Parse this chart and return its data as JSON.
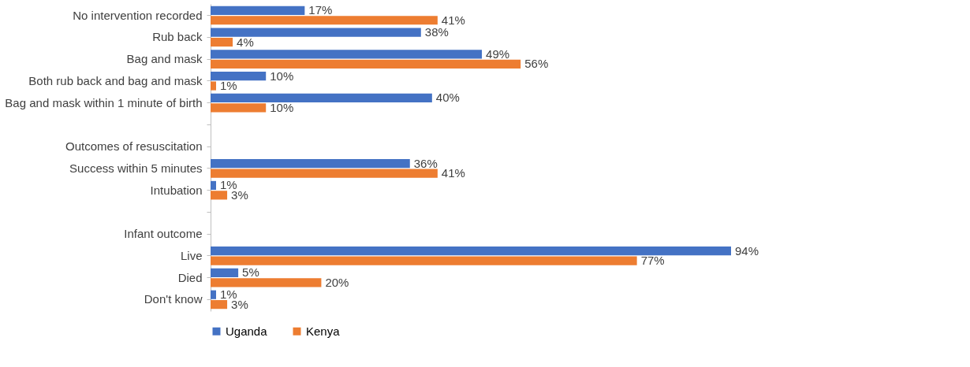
{
  "chart_data": {
    "type": "bar",
    "orientation": "horizontal",
    "legend": "bottom left",
    "grid": false,
    "categories": [
      "No intervention recorded",
      "Rub back",
      "Bag and mask",
      "Both rub back and bag and mask",
      "Bag and mask within 1 minute of birth",
      null,
      "Outcomes of resuscitation",
      "Success within 5 minutes",
      "Intubation",
      null,
      "Infant outcome",
      "Live",
      "Died",
      "Don't know"
    ],
    "series": [
      {
        "name": "Uganda",
        "color": "#4472c4",
        "values": [
          17,
          38,
          49,
          10,
          40,
          null,
          null,
          36,
          1,
          null,
          null,
          94,
          5,
          1
        ],
        "value_labels": [
          "17%",
          "38%",
          "49%",
          "10%",
          "40%",
          null,
          null,
          "36%",
          "1%",
          null,
          null,
          "94%",
          "5%",
          "1%"
        ]
      },
      {
        "name": "Kenya",
        "color": "#ed7d31",
        "values": [
          41,
          4,
          56,
          1,
          10,
          null,
          null,
          41,
          3,
          null,
          null,
          77,
          20,
          3
        ],
        "value_labels": [
          "41%",
          "4%",
          "56%",
          "1%",
          "10%",
          null,
          null,
          "41%",
          "3%",
          null,
          null,
          "77%",
          "20%",
          "3%"
        ]
      }
    ]
  }
}
